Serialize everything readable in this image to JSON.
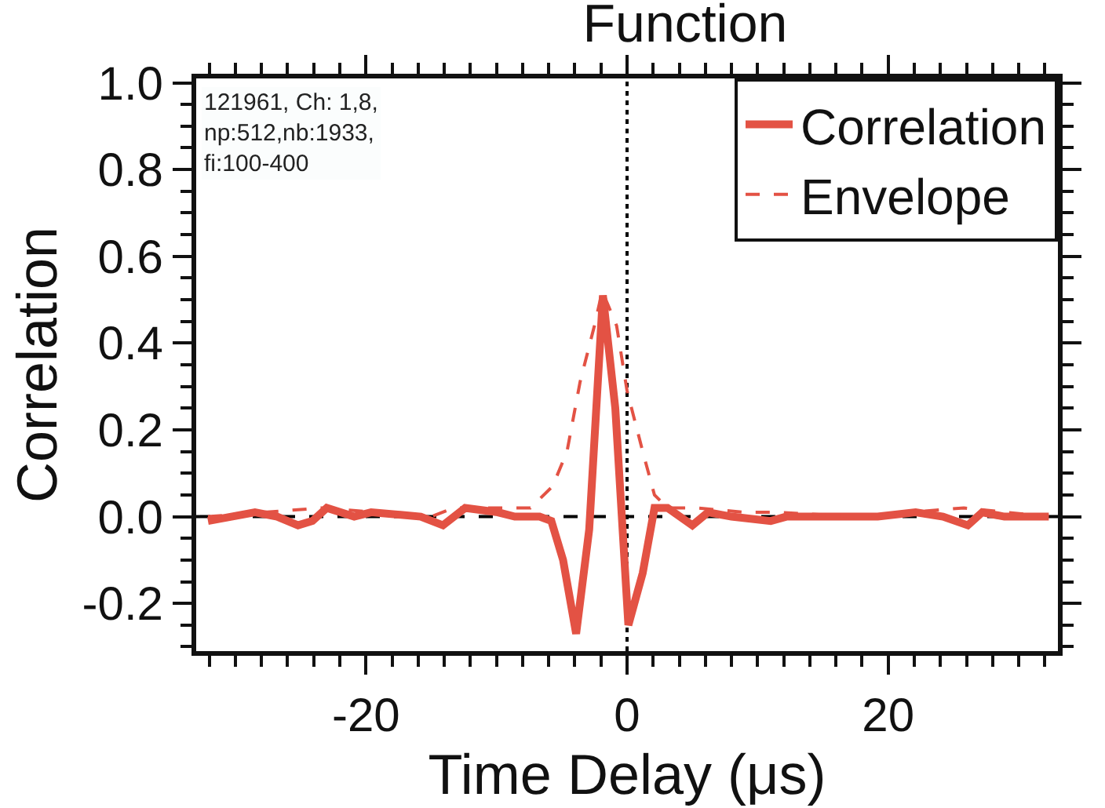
{
  "chart_data": {
    "type": "line",
    "title": "Function",
    "xlabel": "Time Delay (μs)",
    "ylabel": "Correlation",
    "annotations": [
      "121961, Ch: 1,8,\nnp:512,nb:1933,\nfi:100-400"
    ],
    "series": [
      {
        "name": "Correlation",
        "color": "#e35244",
        "line_style": "solid",
        "x": [
          -32.1,
          -28.5,
          -26.8,
          -25.2,
          -24.1,
          -23.0,
          -20.9,
          -19.6,
          -15.8,
          -14.1,
          -12.4,
          -9.9,
          -8.6,
          -6.7,
          -5.8,
          -4.9,
          -3.9,
          -2.9,
          -1.85,
          -0.9,
          0.1,
          1.2,
          2.1,
          3.1,
          5.0,
          6.2,
          8.0,
          11.0,
          12.2,
          15.8,
          19.2,
          22.1,
          24.2,
          26.1,
          27.2,
          28.9,
          30.6,
          32.3
        ],
        "values": [
          -0.01,
          0.01,
          0,
          -0.02,
          -0.01,
          0.02,
          0,
          0.01,
          0,
          -0.02,
          0.02,
          0.01,
          0,
          0,
          -0.01,
          -0.1,
          -0.27,
          -0.03,
          0.51,
          0.25,
          -0.25,
          -0.13,
          0.02,
          0.02,
          -0.02,
          0.01,
          0,
          -0.01,
          0,
          0,
          0,
          0.01,
          0,
          -0.02,
          0.01,
          0,
          0,
          0
        ]
      },
      {
        "name": "Envelope",
        "color": "#e35244",
        "line_style": "dashed",
        "x": [
          -32.1,
          -23.4,
          -15.0,
          -13.3,
          -7.4,
          -5.7,
          -4.6,
          -3.6,
          -2.5,
          -1.9,
          -0.8,
          0.0,
          1.2,
          2.1,
          3.1,
          5.3,
          9.0,
          11.5,
          17.4,
          25.8,
          32.3
        ],
        "values": [
          0,
          0.02,
          0,
          0.02,
          0.02,
          0.07,
          0.15,
          0.31,
          0.44,
          0.52,
          0.44,
          0.29,
          0.15,
          0.05,
          0.02,
          0.02,
          0.01,
          0.01,
          0,
          0.02,
          0
        ]
      }
    ],
    "xlim": [
      -33,
      33
    ],
    "xticks": [
      -20,
      0,
      20
    ],
    "ylim": [
      -0.31,
      1.01
    ],
    "yticks": [
      {
        "value": -0.2,
        "label": "-0.2"
      },
      {
        "value": 0,
        "label": "0.0"
      },
      {
        "value": 0.2,
        "label": "0.2"
      },
      {
        "value": 0.4,
        "label": "0.4"
      },
      {
        "value": 0.6,
        "label": "0.6"
      },
      {
        "value": 0.8,
        "label": "0.8"
      },
      {
        "value": 1.0,
        "label": "1.0"
      }
    ],
    "ref_lines": [
      {
        "axis": "x",
        "value": 0,
        "color": "#000000",
        "line_style": "dotted"
      },
      {
        "axis": "y",
        "value": 0,
        "color": "#000000",
        "line_style": "dashed"
      }
    ],
    "legend": "top right",
    "grid": false,
    "marker": "none"
  }
}
